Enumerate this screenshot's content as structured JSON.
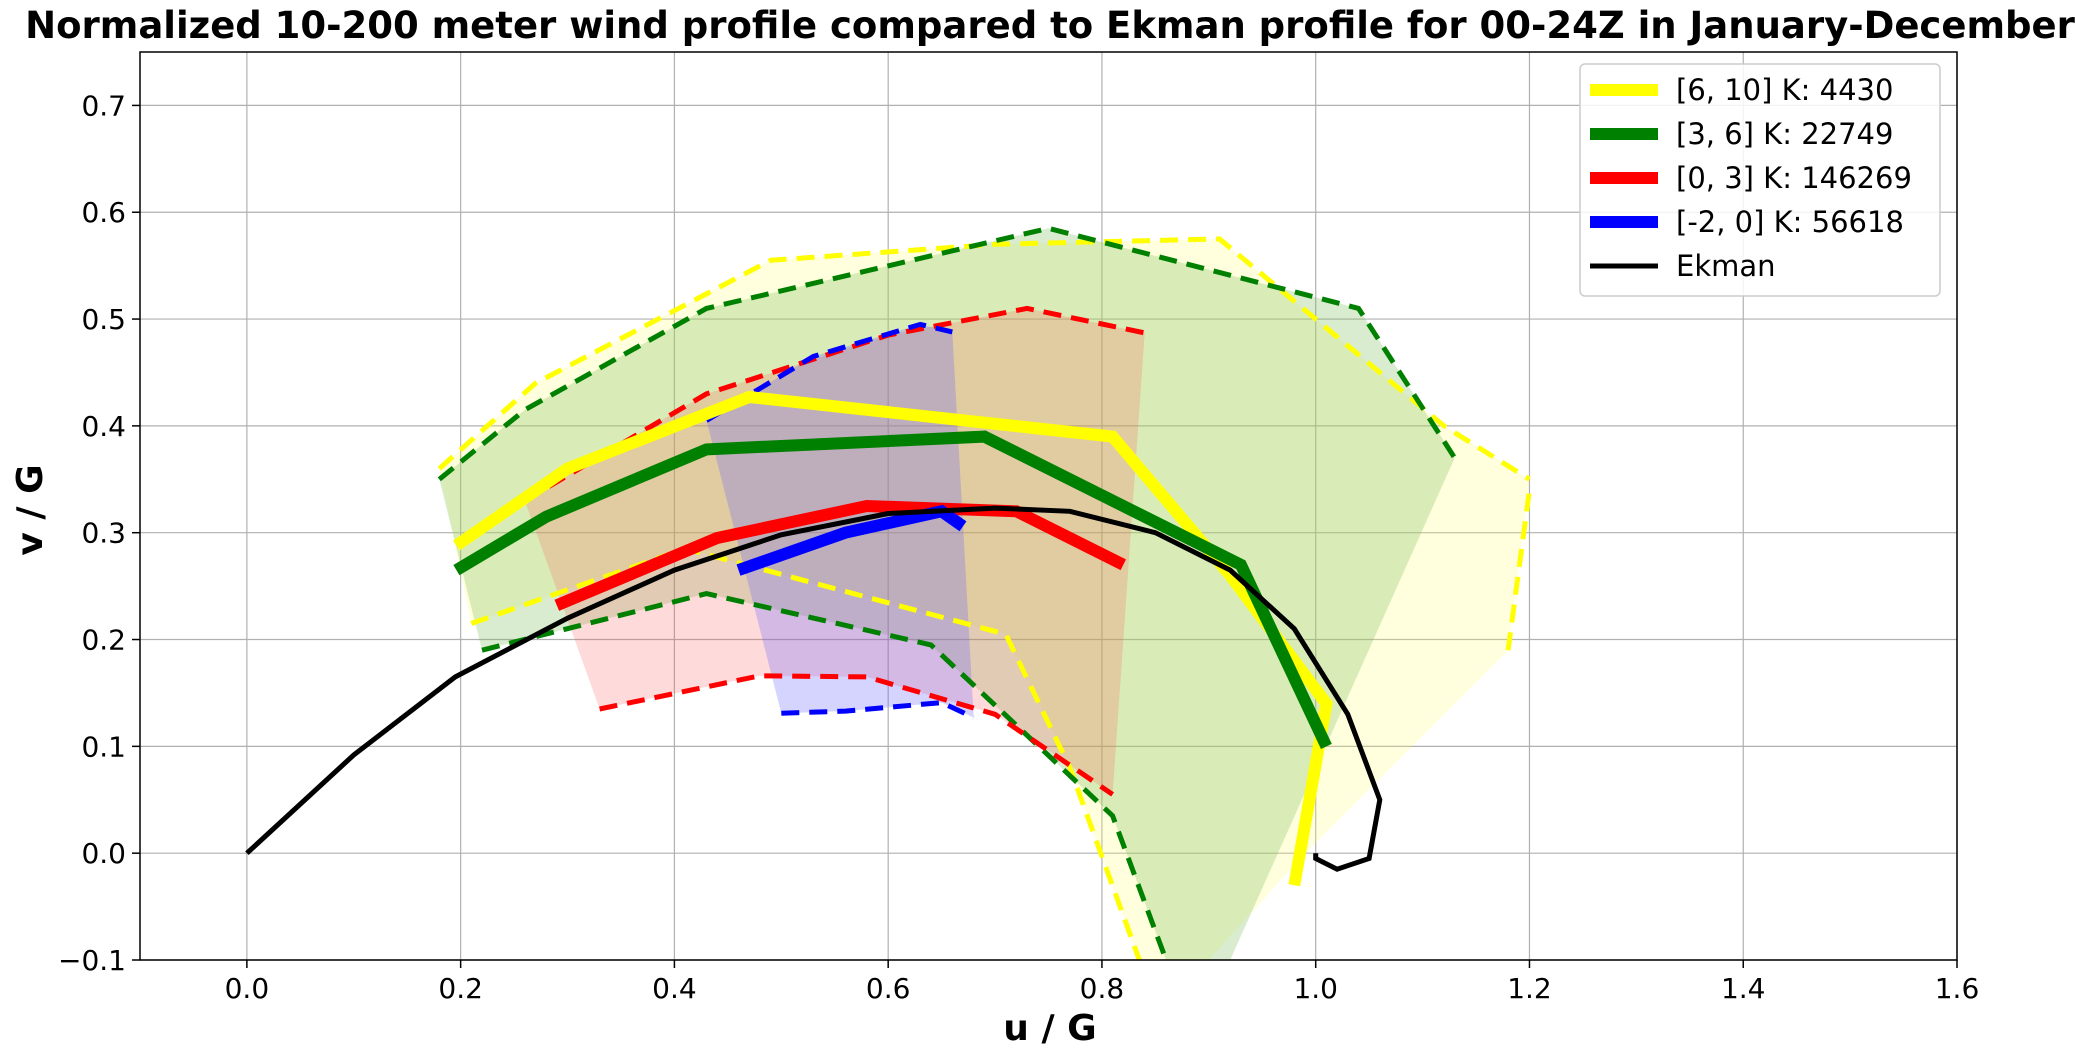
{
  "chart_data": {
    "type": "line",
    "title": "Normalized 10-200 meter wind profile compared to Ekman profile for 00-24Z in January-December",
    "xlabel": "u / G",
    "ylabel": "v / G",
    "xlim": [
      -0.1,
      1.6
    ],
    "ylim": [
      -0.1,
      0.75
    ],
    "xticks": [
      0.0,
      0.2,
      0.4,
      0.6,
      0.8,
      1.0,
      1.2,
      1.4,
      1.6
    ],
    "xtick_labels": [
      "0.0",
      "0.2",
      "0.4",
      "0.6",
      "0.8",
      "1.0",
      "1.2",
      "1.4",
      "1.6"
    ],
    "yticks": [
      -0.1,
      0.0,
      0.1,
      0.2,
      0.3,
      0.4,
      0.5,
      0.6,
      0.7
    ],
    "ytick_labels": [
      "−0.1",
      "0.0",
      "0.1",
      "0.2",
      "0.3",
      "0.4",
      "0.5",
      "0.6",
      "0.7"
    ],
    "grid": true,
    "legend_position": "top-right",
    "series": [
      {
        "name": "[6, 10] K:  4430",
        "color": "#ffff00",
        "mean": [
          [
            0.196,
            0.288
          ],
          [
            0.3,
            0.36
          ],
          [
            0.47,
            0.427
          ],
          [
            0.81,
            0.39
          ],
          [
            0.92,
            0.26
          ],
          [
            1.01,
            0.14
          ],
          [
            0.98,
            -0.03
          ]
        ],
        "upper": [
          [
            0.18,
            0.36
          ],
          [
            0.27,
            0.44
          ],
          [
            0.49,
            0.555
          ],
          [
            0.7,
            0.57
          ],
          [
            0.91,
            0.575
          ],
          [
            1.12,
            0.4
          ],
          [
            1.2,
            0.35
          ]
        ],
        "lower": [
          [
            0.21,
            0.215
          ],
          [
            0.41,
            0.285
          ],
          [
            0.71,
            0.205
          ],
          [
            0.77,
            0.08
          ],
          [
            0.835,
            -0.1
          ]
        ],
        "lower_extra": [
          [
            1.18,
            0.19
          ],
          [
            1.2,
            0.34
          ]
        ]
      },
      {
        "name": "[3, 6] K:  22749",
        "color": "#008000",
        "mean": [
          [
            0.196,
            0.265
          ],
          [
            0.28,
            0.315
          ],
          [
            0.43,
            0.378
          ],
          [
            0.69,
            0.39
          ],
          [
            0.93,
            0.27
          ],
          [
            1.01,
            0.1
          ]
        ],
        "upper": [
          [
            0.18,
            0.35
          ],
          [
            0.26,
            0.415
          ],
          [
            0.43,
            0.51
          ],
          [
            0.75,
            0.585
          ],
          [
            1.04,
            0.51
          ],
          [
            1.13,
            0.37
          ]
        ],
        "lower": [
          [
            0.22,
            0.19
          ],
          [
            0.43,
            0.243
          ],
          [
            0.64,
            0.195
          ],
          [
            0.81,
            0.035
          ],
          [
            0.86,
            -0.1
          ]
        ]
      },
      {
        "name": "[0, 3] K:  146269",
        "color": "#ff0000",
        "mean": [
          [
            0.29,
            0.232
          ],
          [
            0.44,
            0.295
          ],
          [
            0.58,
            0.325
          ],
          [
            0.72,
            0.32
          ],
          [
            0.82,
            0.27
          ]
        ],
        "upper": [
          [
            0.26,
            0.33
          ],
          [
            0.43,
            0.43
          ],
          [
            0.6,
            0.485
          ],
          [
            0.73,
            0.51
          ],
          [
            0.84,
            0.487
          ]
        ],
        "lower": [
          [
            0.33,
            0.135
          ],
          [
            0.48,
            0.166
          ],
          [
            0.58,
            0.165
          ],
          [
            0.7,
            0.13
          ],
          [
            0.81,
            0.055
          ]
        ]
      },
      {
        "name": "[-2, 0] K:  56618",
        "color": "#0000ff",
        "mean": [
          [
            0.46,
            0.265
          ],
          [
            0.56,
            0.3
          ],
          [
            0.65,
            0.32
          ],
          [
            0.67,
            0.306
          ]
        ],
        "upper": [
          [
            0.43,
            0.405
          ],
          [
            0.53,
            0.465
          ],
          [
            0.63,
            0.495
          ],
          [
            0.66,
            0.488
          ]
        ],
        "lower": [
          [
            0.5,
            0.131
          ],
          [
            0.56,
            0.133
          ],
          [
            0.65,
            0.141
          ],
          [
            0.68,
            0.127
          ]
        ]
      },
      {
        "name": "Ekman",
        "color": "#000000",
        "mean": [
          [
            0.0,
            0.0
          ],
          [
            0.1,
            0.092
          ],
          [
            0.195,
            0.165
          ],
          [
            0.3,
            0.22
          ],
          [
            0.4,
            0.265
          ],
          [
            0.5,
            0.298
          ],
          [
            0.6,
            0.318
          ],
          [
            0.7,
            0.323
          ],
          [
            0.77,
            0.32
          ],
          [
            0.85,
            0.3
          ],
          [
            0.92,
            0.265
          ],
          [
            0.98,
            0.21
          ],
          [
            1.03,
            0.13
          ],
          [
            1.06,
            0.05
          ],
          [
            1.05,
            -0.005
          ],
          [
            1.02,
            -0.015
          ],
          [
            1.0,
            -0.005
          ],
          [
            1.0,
            0.0
          ]
        ]
      }
    ],
    "bands": [
      {
        "series": "[6, 10] K:  4430",
        "color": "#ffff66",
        "opacity": 0.22,
        "polygon": [
          [
            0.18,
            0.36
          ],
          [
            0.27,
            0.44
          ],
          [
            0.49,
            0.555
          ],
          [
            0.7,
            0.57
          ],
          [
            0.91,
            0.575
          ],
          [
            1.12,
            0.4
          ],
          [
            1.2,
            0.35
          ],
          [
            1.18,
            0.19
          ],
          [
            1.07,
            0.08
          ],
          [
            0.99,
            0.0
          ],
          [
            0.9,
            -0.1
          ],
          [
            0.835,
            -0.1
          ],
          [
            0.77,
            0.08
          ],
          [
            0.71,
            0.205
          ],
          [
            0.41,
            0.285
          ],
          [
            0.21,
            0.215
          ]
        ]
      },
      {
        "series": "[3, 6] K:  22749",
        "color": "#77bb55",
        "opacity": 0.28,
        "polygon": [
          [
            0.18,
            0.35
          ],
          [
            0.26,
            0.415
          ],
          [
            0.43,
            0.51
          ],
          [
            0.75,
            0.585
          ],
          [
            1.04,
            0.51
          ],
          [
            1.13,
            0.37
          ],
          [
            0.92,
            -0.1
          ],
          [
            0.86,
            -0.1
          ],
          [
            0.81,
            0.035
          ],
          [
            0.64,
            0.195
          ],
          [
            0.43,
            0.243
          ],
          [
            0.22,
            0.19
          ]
        ]
      },
      {
        "series": "[0, 3] K:  146269",
        "color": "#ff5555",
        "opacity": 0.22,
        "polygon": [
          [
            0.26,
            0.33
          ],
          [
            0.43,
            0.43
          ],
          [
            0.6,
            0.485
          ],
          [
            0.73,
            0.51
          ],
          [
            0.84,
            0.487
          ],
          [
            0.81,
            0.055
          ],
          [
            0.7,
            0.13
          ],
          [
            0.58,
            0.165
          ],
          [
            0.48,
            0.166
          ],
          [
            0.33,
            0.135
          ]
        ]
      },
      {
        "series": "[-2, 0] K:  56618",
        "color": "#6666ff",
        "opacity": 0.28,
        "polygon": [
          [
            0.43,
            0.405
          ],
          [
            0.53,
            0.465
          ],
          [
            0.63,
            0.495
          ],
          [
            0.66,
            0.488
          ],
          [
            0.68,
            0.127
          ],
          [
            0.65,
            0.141
          ],
          [
            0.56,
            0.133
          ],
          [
            0.5,
            0.131
          ]
        ]
      }
    ]
  }
}
